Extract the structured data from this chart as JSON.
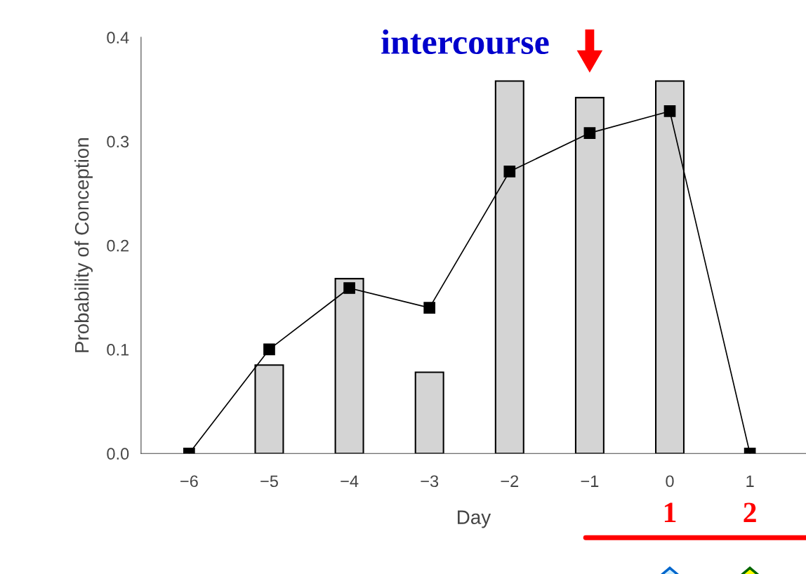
{
  "chart_data": {
    "type": "bar",
    "xlabel": "Day",
    "ylabel": "Probability of Conception",
    "series": [
      {
        "color": "#d4d4d4",
        "x": [
          -5,
          -4,
          -3,
          -2,
          -1,
          0
        ],
        "values": [
          0.085,
          0.168,
          0.078,
          0.358,
          0.342,
          0.358
        ]
      },
      {
        "type": "line",
        "color": "#000000",
        "x": [
          -6,
          -5,
          -4,
          -3,
          -2,
          -1,
          0,
          1
        ],
        "values": [
          0.0,
          0.1,
          0.159,
          0.14,
          0.271,
          0.308,
          0.329,
          0.0
        ]
      }
    ],
    "marker": "square",
    "line_style": "solid",
    "xlim": [
      -6.6,
      1.7
    ],
    "ylim": [
      0,
      0.4
    ],
    "xticks": [
      {
        "value": -6,
        "label": "−6"
      },
      {
        "value": -5,
        "label": "−5"
      },
      {
        "value": -4,
        "label": "−4"
      },
      {
        "value": -3,
        "label": "−3"
      },
      {
        "value": -2,
        "label": "−2"
      },
      {
        "value": -1,
        "label": "−1"
      },
      0,
      1
    ],
    "yticks": [
      {
        "value": 0,
        "label": "0.0"
      },
      0.1,
      0.2,
      0.3,
      0.4
    ],
    "grid": false,
    "annotations": [
      {
        "text": "intercourse",
        "x": -1,
        "y": 0.342
      },
      "1",
      "2"
    ]
  }
}
